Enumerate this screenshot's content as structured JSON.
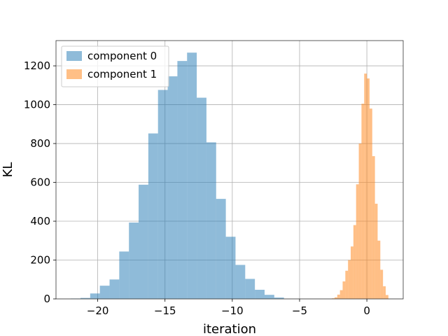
{
  "chart_data": {
    "type": "bar",
    "title": "",
    "xlabel": "iteration",
    "ylabel": "KL",
    "xlim": [
      -23.1,
      2.7
    ],
    "ylim": [
      0,
      1330
    ],
    "xticks": [
      -20,
      -15,
      -10,
      -5,
      0
    ],
    "xtick_labels": [
      "−20",
      "−15",
      "−10",
      "−5",
      "0"
    ],
    "yticks": [
      0,
      200,
      400,
      600,
      800,
      1000,
      1200
    ],
    "ytick_labels": [
      "0",
      "200",
      "400",
      "600",
      "800",
      "1000",
      "1200"
    ],
    "grid": true,
    "legend_position": "upper-left",
    "series": [
      {
        "name": "component 0",
        "color": "#1f77b4",
        "alpha": 0.5,
        "bin_edges": [
          -22.0,
          -21.28,
          -20.56,
          -19.84,
          -19.12,
          -18.4,
          -17.68,
          -16.96,
          -16.24,
          -15.52,
          -14.8,
          -14.08,
          -13.36,
          -12.64,
          -11.92,
          -11.2,
          -10.48,
          -9.76,
          -9.04,
          -8.32,
          -7.6,
          -6.88,
          -6.16
        ],
        "values": [
          2,
          5,
          28,
          68,
          100,
          244,
          393,
          588,
          852,
          1076,
          1146,
          1225,
          1268,
          1036,
          806,
          515,
          320,
          175,
          103,
          47,
          21,
          7
        ]
      },
      {
        "name": "component 1",
        "color": "#ff7f0e",
        "alpha": 0.5,
        "bin_edges": [
          -2.6,
          -2.4,
          -2.2,
          -2.0,
          -1.8,
          -1.6,
          -1.4,
          -1.2,
          -1.0,
          -0.8,
          -0.6,
          -0.4,
          -0.2,
          0.0,
          0.2,
          0.4,
          0.6,
          0.8,
          1.0,
          1.2,
          1.4,
          1.6
        ],
        "values": [
          3,
          8,
          22,
          45,
          90,
          145,
          200,
          270,
          380,
          590,
          800,
          1005,
          1160,
          1135,
          980,
          735,
          490,
          300,
          150,
          65,
          20
        ]
      }
    ]
  }
}
